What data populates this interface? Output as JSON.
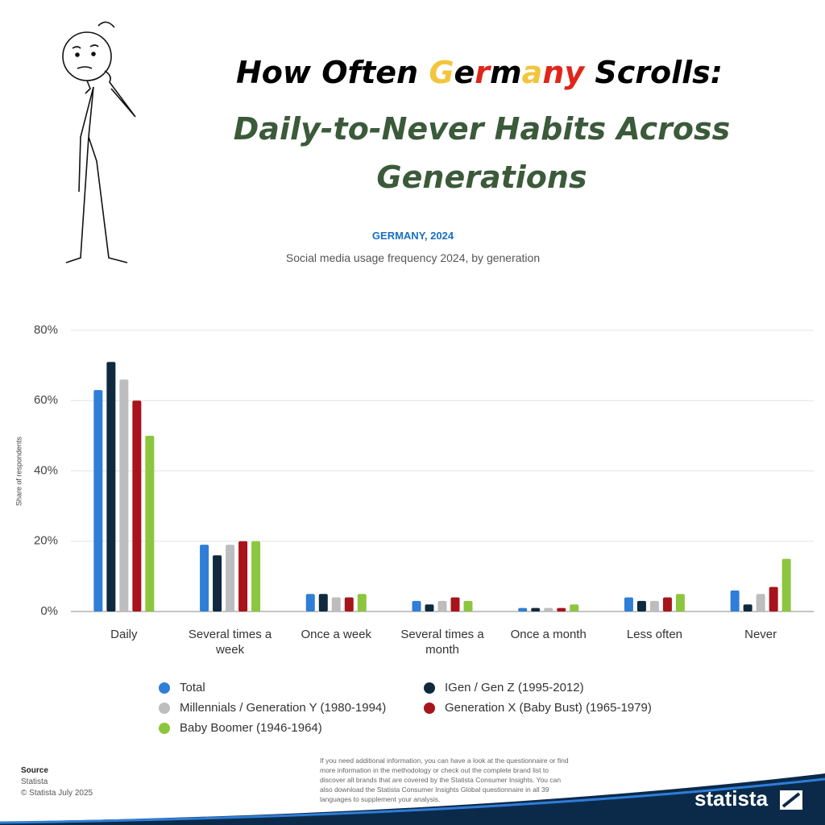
{
  "title_parts": [
    {
      "text": "How Often ",
      "color": "#000000"
    },
    {
      "text": "G",
      "color": "#f2c53d"
    },
    {
      "text": "e",
      "color": "#000000"
    },
    {
      "text": "r",
      "color": "#e0261b"
    },
    {
      "text": "m",
      "color": "#000000"
    },
    {
      "text": "a",
      "color": "#f2c53d"
    },
    {
      "text": "ny",
      "color": "#e0261b"
    },
    {
      "text": " Scrolls:",
      "color": "#000000"
    }
  ],
  "headline": "Daily-to-Never Habits Across Generations",
  "chart_data": {
    "type": "bar",
    "title": "GERMANY, 2024",
    "subtitle": "Social media usage frequency 2024, by generation",
    "y_label": "Share of respondents",
    "categories": [
      "Daily",
      "Several times a week",
      "Once a week",
      "Several times a month",
      "Once a month",
      "Less often",
      "Never"
    ],
    "series": [
      {
        "name": "Total",
        "color": "#2f7ed8",
        "values": [
          63,
          19,
          5,
          3,
          1,
          4,
          6
        ]
      },
      {
        "name": "IGen / Gen Z (1995-2012)",
        "color": "#0f2a3f",
        "values": [
          71,
          16,
          5,
          2,
          1,
          3,
          2
        ]
      },
      {
        "name": "Millennials / Generation Y (1980-1994)",
        "color": "#bdbdbd",
        "values": [
          66,
          19,
          4,
          3,
          1,
          3,
          5
        ]
      },
      {
        "name": "Generation X (Baby Bust) (1965-1979)",
        "color": "#a8141b",
        "values": [
          60,
          20,
          4,
          4,
          1,
          4,
          7
        ]
      },
      {
        "name": "Baby Boomer (1946-1964)",
        "color": "#8cc63f",
        "values": [
          50,
          20,
          5,
          3,
          2,
          5,
          15
        ]
      }
    ],
    "ylim": [
      0,
      80
    ],
    "yticks": [
      {
        "value": 0,
        "label": "0%"
      },
      {
        "value": 20,
        "label": "20%"
      },
      {
        "value": 40,
        "label": "40%"
      },
      {
        "value": 60,
        "label": "60%"
      },
      {
        "value": 80,
        "label": "80%"
      }
    ],
    "grid": true
  },
  "source": {
    "label": "Source",
    "lines": [
      "Statista",
      "© Statista July 2025"
    ]
  },
  "note": "If you need additional information, you can have a look at the questionnaire or find more information in the methodology or check out the complete brand list to discover all brands that are covered by the Statista Consumer Insights. You can also download the Statista Consumer Insights Global questionnaire in all 39 languages to supplement your analysis.",
  "brand": "statista"
}
